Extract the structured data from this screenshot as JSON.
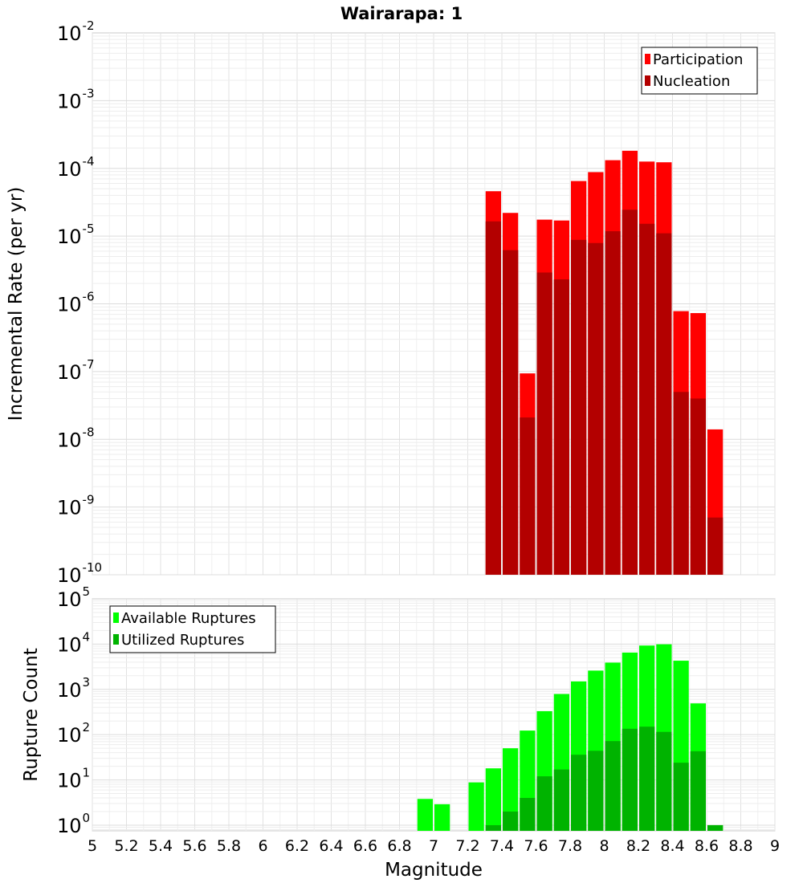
{
  "chart_data": [
    {
      "type": "bar",
      "title": "Wairarapa: 1",
      "ylabel": "Incremental Rate (per yr)",
      "xlabel": "",
      "xlim": [
        5,
        9
      ],
      "ylim": [
        1e-10,
        0.01
      ],
      "y_scale": "log",
      "ytick_base": "10",
      "ytick_exponents": [
        "-10",
        "-9",
        "-8",
        "-7",
        "-6",
        "-5",
        "-4",
        "-3",
        "-2"
      ],
      "legend_position": "top-right",
      "bar_width": 0.1,
      "series": [
        {
          "name": "Participation",
          "color": "#ff0000",
          "x": [
            7.35,
            7.45,
            7.55,
            7.65,
            7.75,
            7.85,
            7.95,
            8.05,
            8.15,
            8.25,
            8.35,
            8.45,
            8.55,
            8.65
          ],
          "values": [
            4.6e-05,
            2.2e-05,
            9.4e-08,
            1.75e-05,
            1.7e-05,
            6.5e-05,
            8.8e-05,
            0.000132,
            0.000182,
            0.000126,
            0.000123,
            7.8e-07,
            7.3e-07,
            1.4e-08
          ]
        },
        {
          "name": "Nucleation",
          "color": "#b30000",
          "x": [
            7.35,
            7.45,
            7.55,
            7.65,
            7.75,
            7.85,
            7.95,
            8.05,
            8.15,
            8.25,
            8.35,
            8.45,
            8.55,
            8.65
          ],
          "values": [
            1.65e-05,
            6.2e-06,
            2.1e-08,
            2.9e-06,
            2.3e-06,
            8.8e-06,
            7.9e-06,
            1.18e-05,
            2.45e-05,
            1.52e-05,
            1.1e-05,
            5e-08,
            4e-08,
            7e-10
          ]
        }
      ]
    },
    {
      "type": "bar",
      "title": "",
      "ylabel": "Rupture Count",
      "xlabel": "Magnitude",
      "xlim": [
        5,
        9
      ],
      "ylim": [
        0.75,
        100000.0
      ],
      "y_scale": "log",
      "ytick_base": "10",
      "ytick_exponents": [
        "0",
        "1",
        "2",
        "3",
        "4",
        "5"
      ],
      "xticks": [
        "5",
        "5.2",
        "5.4",
        "5.6",
        "5.8",
        "6",
        "6.2",
        "6.4",
        "6.6",
        "6.8",
        "7",
        "7.2",
        "7.4",
        "7.6",
        "7.8",
        "8",
        "8.2",
        "8.4",
        "8.6",
        "8.8",
        "9"
      ],
      "legend_position": "top-left",
      "bar_width": 0.1,
      "series": [
        {
          "name": "Available Ruptures",
          "color": "#00ff00",
          "x": [
            6.95,
            7.05,
            7.25,
            7.35,
            7.45,
            7.55,
            7.65,
            7.75,
            7.85,
            7.95,
            8.05,
            8.15,
            8.25,
            8.35,
            8.45,
            8.55,
            8.65
          ],
          "values": [
            3.8,
            2.9,
            8.8,
            18,
            50,
            123,
            330,
            790,
            1500,
            2600,
            3900,
            6500,
            9300,
            9900,
            4300,
            490,
            1
          ]
        },
        {
          "name": "Utilized Ruptures",
          "color": "#00b300",
          "x": [
            7.35,
            7.45,
            7.55,
            7.65,
            7.75,
            7.85,
            7.95,
            8.05,
            8.15,
            8.25,
            8.35,
            8.45,
            8.55,
            8.65
          ],
          "values": [
            1,
            2,
            4,
            12,
            17,
            36,
            44,
            72,
            135,
            150,
            115,
            24,
            43,
            1
          ]
        }
      ]
    }
  ]
}
